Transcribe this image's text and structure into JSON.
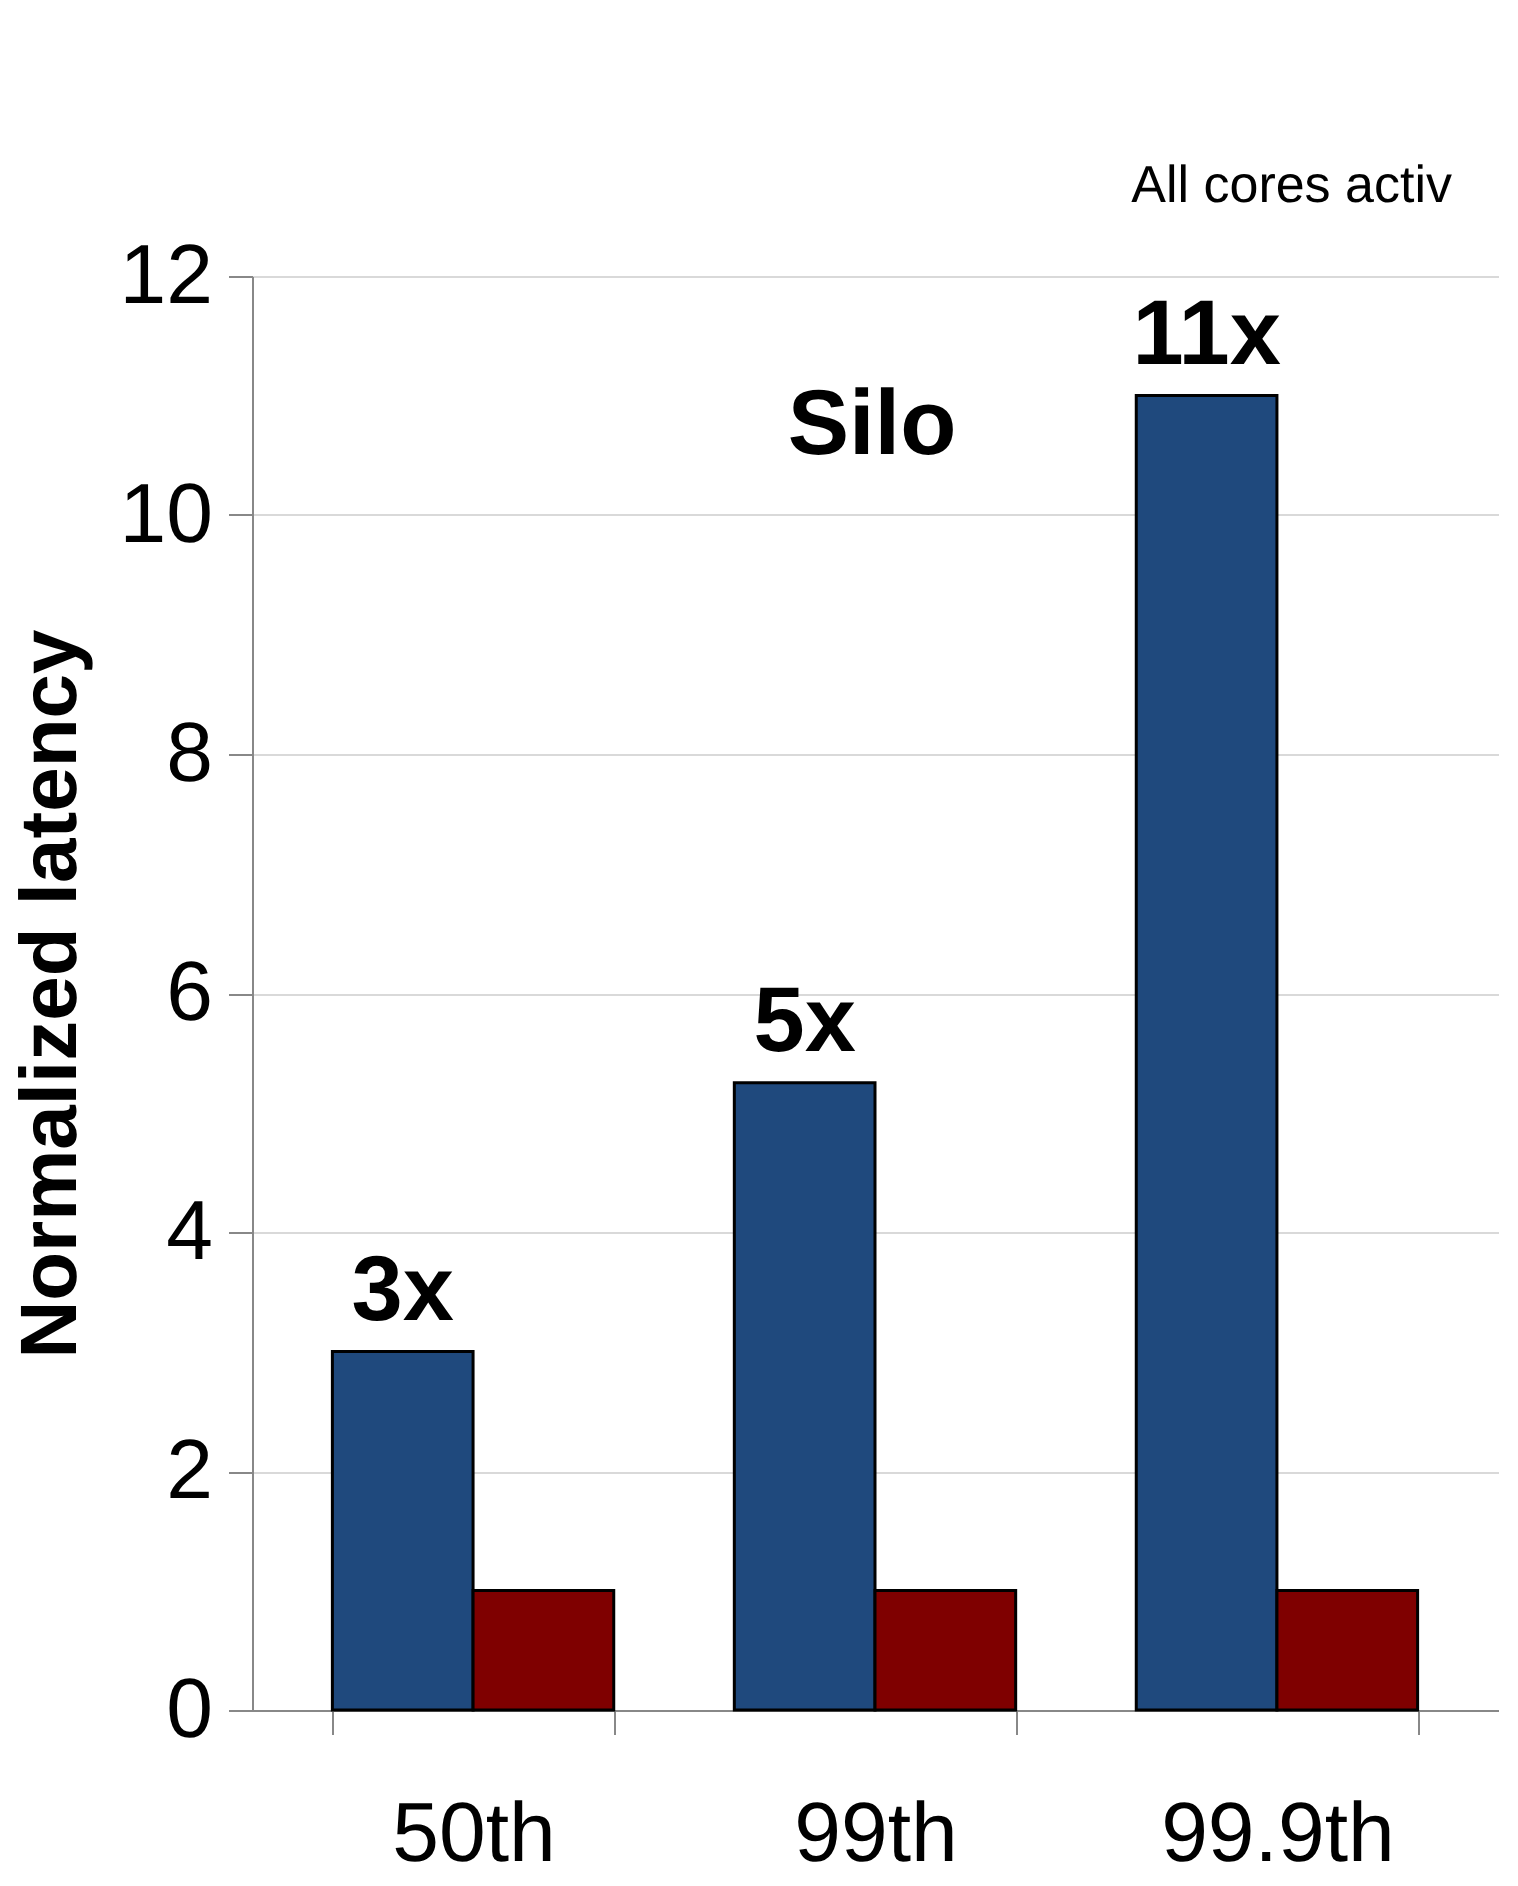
{
  "chart_data": {
    "type": "bar",
    "ylabel": "Normalized latency",
    "categories": [
      "50th",
      "99th",
      "99.9th"
    ],
    "series": [
      {
        "color": "#1f497d",
        "values": [
          3,
          5.25,
          11
        ],
        "value_labels": [
          "3x",
          "5x",
          "11x"
        ]
      },
      {
        "color": "#7f0000",
        "values": [
          1,
          1,
          1
        ]
      }
    ],
    "ylim": [
      0,
      12
    ],
    "yticks": [
      0,
      2,
      4,
      6,
      8,
      10,
      12
    ],
    "grid": "y",
    "annotations": [
      "Silo",
      "All cores activ"
    ]
  }
}
